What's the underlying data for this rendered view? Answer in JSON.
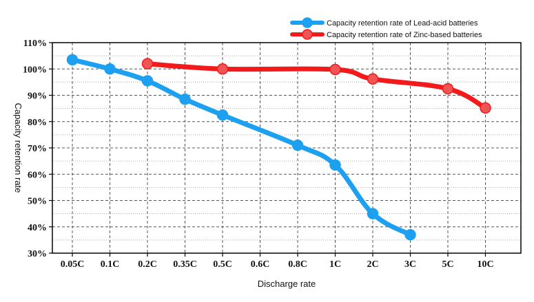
{
  "chart_data": {
    "type": "line",
    "title": "",
    "xlabel": "Discharge rate",
    "ylabel": "Capacity retention rate",
    "categories": [
      "0.05C",
      "0.1C",
      "0.2C",
      "0.35C",
      "0.5C",
      "0.6C",
      "0.8C",
      "1C",
      "2C",
      "3C",
      "5C",
      "10C"
    ],
    "ylim": [
      30,
      110
    ],
    "ytick_values": [
      30,
      40,
      50,
      60,
      70,
      80,
      90,
      100,
      110
    ],
    "ytick_labels": [
      "30%",
      "40%",
      "50%",
      "60%",
      "70%",
      "80%",
      "90%",
      "100%",
      "110%"
    ],
    "grid": true,
    "legend_position": "top-right",
    "series": [
      {
        "name": "Capacity retention rate of Lead-acid batteries",
        "color": "#1ea0f0",
        "marker_color": "#1ea0f0",
        "points": [
          {
            "x": "0.05C",
            "y": 103.5
          },
          {
            "x": "0.1C",
            "y": 100
          },
          {
            "x": "0.2C",
            "y": 95.5
          },
          {
            "x": "0.35C",
            "y": 88.5
          },
          {
            "x": "0.5C",
            "y": 82.5
          },
          {
            "x": "0.8C",
            "y": 71
          },
          {
            "x": "1C",
            "y": 63.5
          },
          {
            "x": "2C",
            "y": 45
          },
          {
            "x": "3C",
            "y": 37
          }
        ]
      },
      {
        "name": "Capacity retention rate of Zinc-based batteries",
        "color": "#f21a1a",
        "marker_color": "#f05454",
        "points": [
          {
            "x": "0.2C",
            "y": 102
          },
          {
            "x": "0.5C",
            "y": 100
          },
          {
            "x": "1C",
            "y": 99.8
          },
          {
            "x": "2C",
            "y": 96.2
          },
          {
            "x": "5C",
            "y": 92.5
          },
          {
            "x": "10C",
            "y": 85.2
          }
        ]
      }
    ]
  }
}
